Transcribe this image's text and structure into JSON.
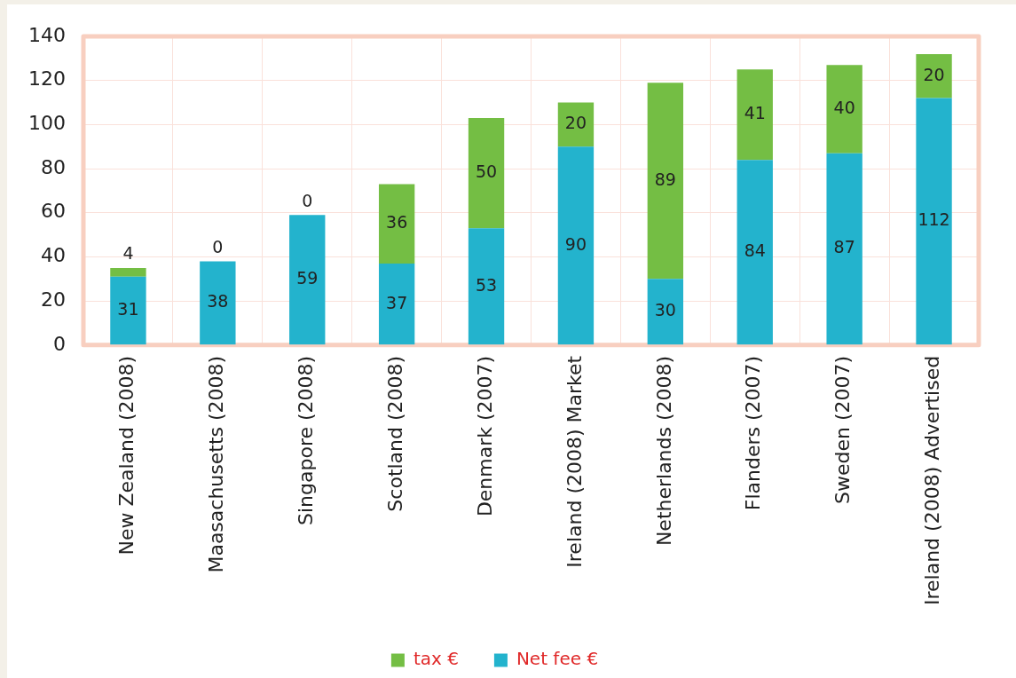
{
  "chart_data": {
    "type": "bar",
    "stacked": true,
    "categories": [
      "New Zealand (2008)",
      "Maasachusetts (2008)",
      "Singapore (2008)",
      "Scotland (2008)",
      "Denmark (2007)",
      "Ireland (2008) Market",
      "Netherlands (2008)",
      "Flanders (2007)",
      "Sweden (2007)",
      "Ireland (2008) Advertised"
    ],
    "series": [
      {
        "name": "Net fee €",
        "color": "#23b3cd",
        "values": [
          31,
          38,
          59,
          37,
          53,
          90,
          30,
          84,
          87,
          112
        ]
      },
      {
        "name": "tax €",
        "color": "#74be44",
        "values": [
          4,
          0,
          0,
          36,
          50,
          20,
          89,
          41,
          40,
          20
        ]
      }
    ],
    "ylim": [
      0,
      140
    ],
    "yticks": [
      0,
      20,
      40,
      60,
      80,
      100,
      120,
      140
    ],
    "grid": true,
    "legend": "bottom",
    "data_labels": true
  }
}
